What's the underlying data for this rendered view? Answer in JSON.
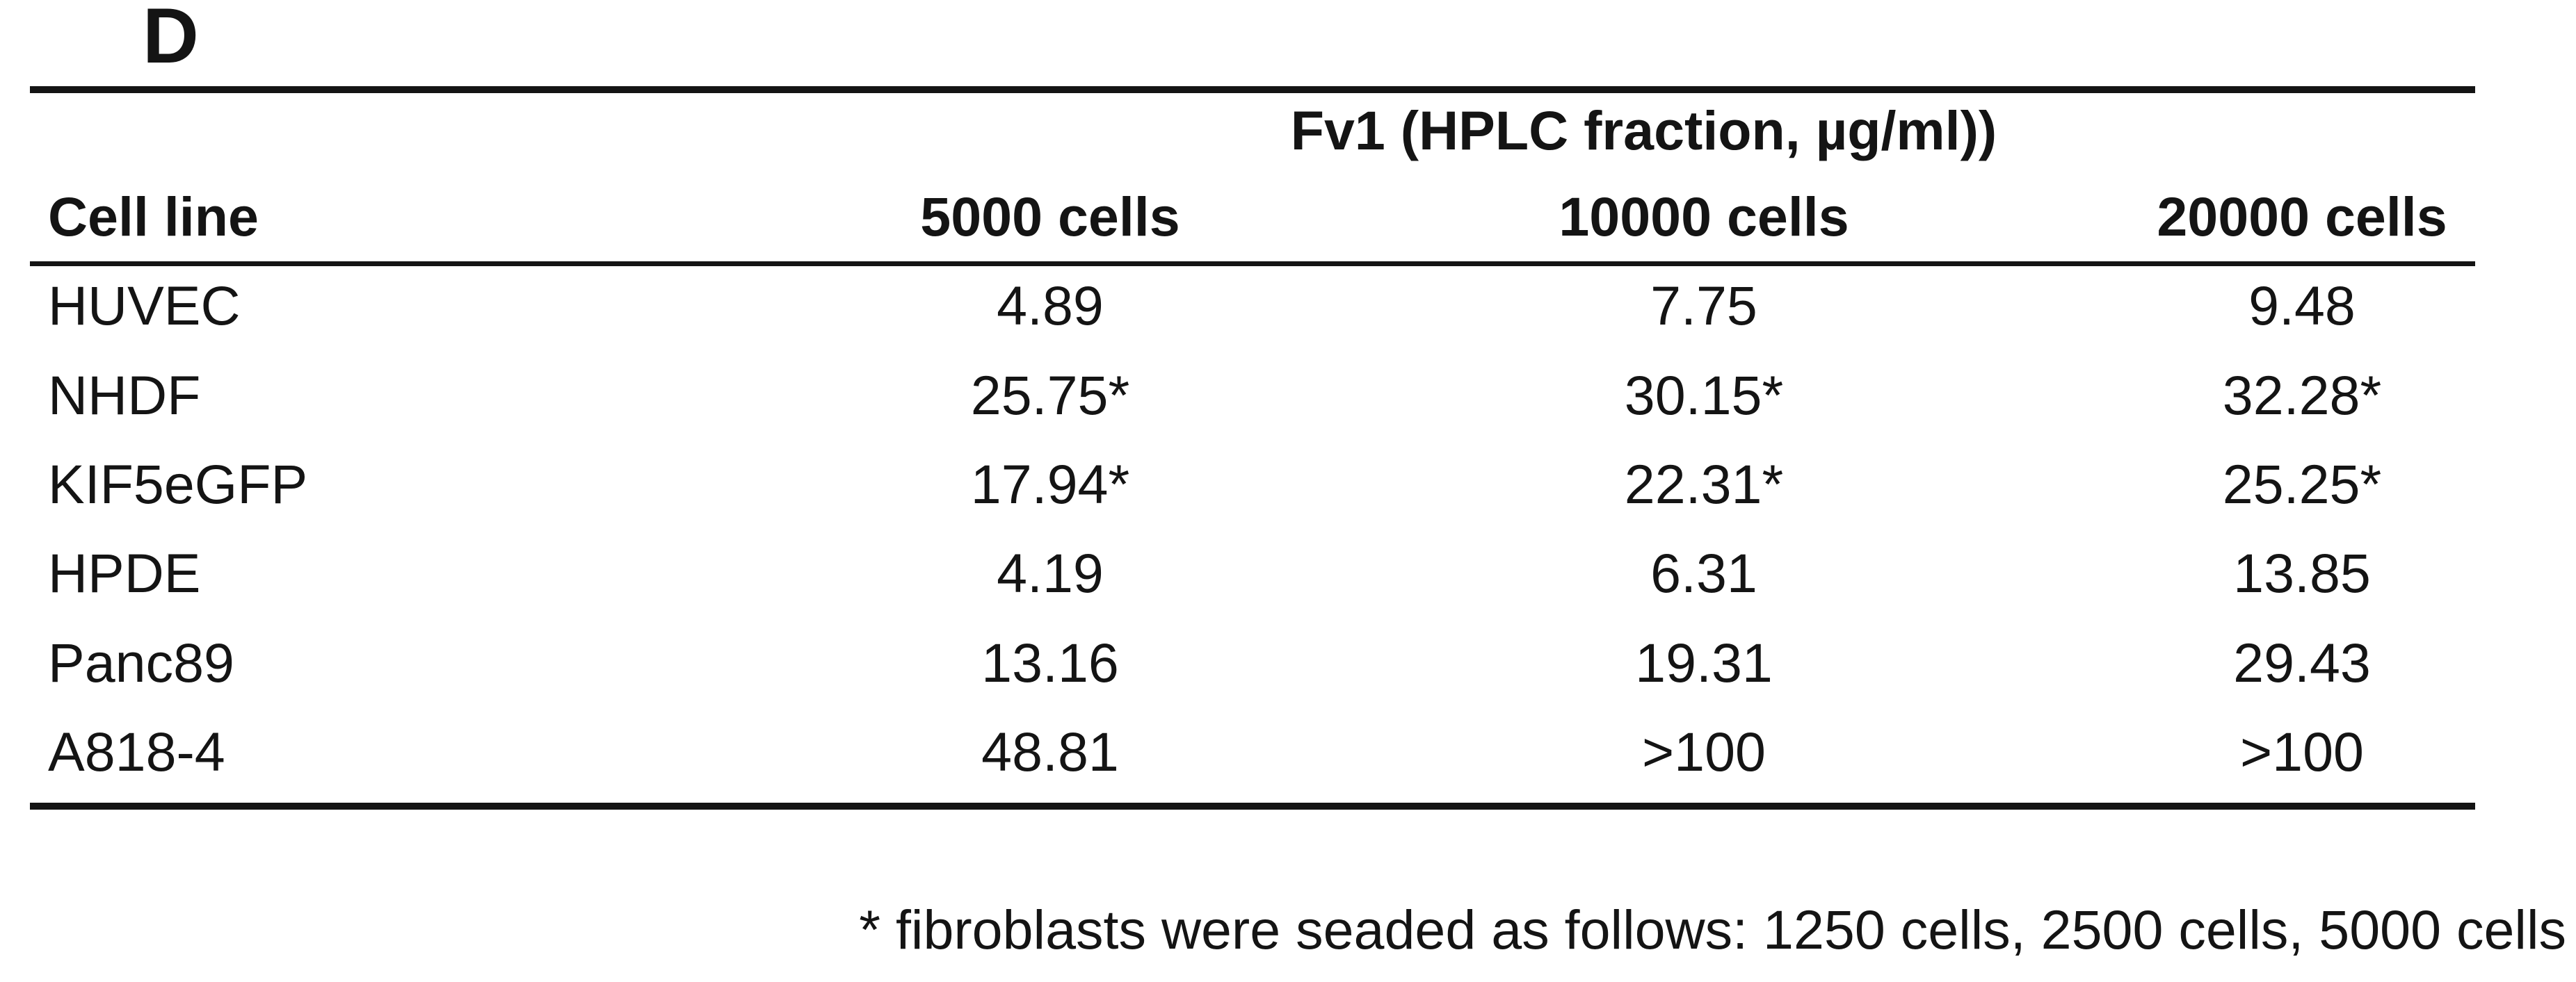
{
  "panel_label": "D",
  "table": {
    "group_header": "Fv1 (HPLC fraction, µg/ml))",
    "columns": [
      "Cell line",
      "5000 cells",
      "10000 cells",
      "20000 cells"
    ],
    "rows": [
      [
        "HUVEC",
        "4.89",
        "7.75",
        "9.48"
      ],
      [
        "NHDF",
        "25.75*",
        "30.15*",
        "32.28*"
      ],
      [
        "KIF5eGFP",
        "17.94*",
        "22.31*",
        "25.25*"
      ],
      [
        "HPDE",
        "4.19",
        "6.31",
        "13.85"
      ],
      [
        "Panc89",
        "13.16",
        "19.31",
        "29.43"
      ],
      [
        "A818-4",
        "48.81",
        ">100",
        ">100"
      ]
    ]
  },
  "footnote": "* fibroblasts were seaded as follows: 1250 cells, 2500 cells, 5000 cells"
}
